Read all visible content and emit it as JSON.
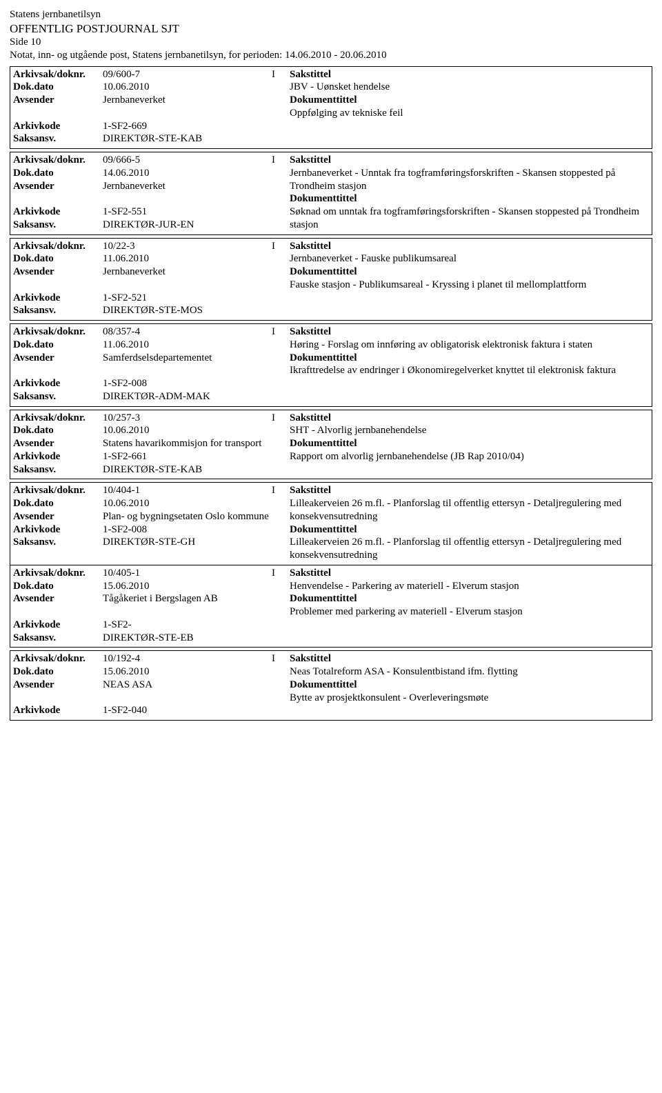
{
  "header": {
    "org": "Statens jernbanetilsyn",
    "title": "OFFENTLIG POSTJOURNAL SJT",
    "side": "Side 10",
    "notat": "Notat, inn- og utgående post, Statens jernbanetilsyn, for perioden: 14.06.2010 - 20.06.2010"
  },
  "labels": {
    "arkivsak": "Arkivsak/doknr.",
    "dokdato": "Dok.dato",
    "avsender": "Avsender",
    "arkivkode": "Arkivkode",
    "saksansv": "Saksansv.",
    "sakstittel": "Sakstittel",
    "dokumenttittel": "Dokumenttittel"
  },
  "groups": [
    {
      "entries": [
        {
          "arkivsak": "09/600-7",
          "io": "I",
          "dokdato": "10.06.2010",
          "avsender": "Jernbaneverket",
          "arkivkode": "1-SF2-669",
          "saksansv": "DIREKTØR-STE-KAB",
          "sakstittel": "JBV - Uønsket hendelse",
          "dokumenttittel": "Oppfølging av tekniske feil"
        }
      ]
    },
    {
      "entries": [
        {
          "arkivsak": "09/666-5",
          "io": "I",
          "dokdato": "14.06.2010",
          "avsender": "Jernbaneverket",
          "arkivkode": "1-SF2-551",
          "saksansv": "DIREKTØR-JUR-EN",
          "sakstittel": "Jernbaneverket - Unntak fra togframføringsforskriften - Skansen stoppested på Trondheim stasjon",
          "dokumenttittel": "Søknad om unntak fra togframføringsforskriften - Skansen stoppested på Trondheim stasjon"
        }
      ]
    },
    {
      "entries": [
        {
          "arkivsak": "10/22-3",
          "io": "I",
          "dokdato": "11.06.2010",
          "avsender": "Jernbaneverket",
          "arkivkode": "1-SF2-521",
          "saksansv": "DIREKTØR-STE-MOS",
          "sakstittel": "Jernbaneverket - Fauske publikumsareal",
          "dokumenttittel": "Fauske stasjon - Publikumsareal - Kryssing i planet til mellomplattform"
        }
      ]
    },
    {
      "entries": [
        {
          "arkivsak": "08/357-4",
          "io": "I",
          "dokdato": "11.06.2010",
          "avsender": "Samferdselsdepartementet",
          "arkivkode": "1-SF2-008",
          "saksansv": "DIREKTØR-ADM-MAK",
          "sakstittel": "Høring - Forslag om innføring av obligatorisk elektronisk faktura i staten",
          "dokumenttittel": "Ikrafttredelse av endringer i Økonomiregelverket knyttet til elektronisk faktura"
        }
      ]
    },
    {
      "entries": [
        {
          "arkivsak": "10/257-3",
          "io": "I",
          "dokdato": "10.06.2010",
          "avsender": "Statens havarikommisjon for transport",
          "arkivkode": "1-SF2-661",
          "saksansv": "DIREKTØR-STE-KAB",
          "sakstittel": "SHT - Alvorlig jernbanehendelse",
          "dokumenttittel": "Rapport om alvorlig jernbanehendelse (JB Rap 2010/04)"
        }
      ]
    },
    {
      "entries": [
        {
          "arkivsak": "10/404-1",
          "io": "I",
          "dokdato": "10.06.2010",
          "avsender": "Plan- og bygningsetaten Oslo kommune",
          "arkivkode": "1-SF2-008",
          "saksansv": "DIREKTØR-STE-GH",
          "sakstittel": "Lilleakerveien 26 m.fl. - Planforslag til offentlig ettersyn - Detaljregulering med konsekvensutredning",
          "dokumenttittel": "Lilleakerveien 26 m.fl. - Planforslag til offentlig ettersyn - Detaljregulering med konsekvensutredning"
        },
        {
          "arkivsak": "10/405-1",
          "io": "I",
          "dokdato": "15.06.2010",
          "avsender": "Tågåkeriet i Bergslagen AB",
          "arkivkode": "1-SF2-",
          "saksansv": "DIREKTØR-STE-EB",
          "sakstittel": "Henvendelse - Parkering av materiell - Elverum stasjon",
          "dokumenttittel": "Problemer med parkering av materiell - Elverum stasjon"
        }
      ]
    },
    {
      "entries": [
        {
          "arkivsak": "10/192-4",
          "io": "I",
          "dokdato": "15.06.2010",
          "avsender": "NEAS ASA",
          "arkivkode": "1-SF2-040",
          "saksansv": "",
          "sakstittel": "Neas Totalreform ASA - Konsulentbistand ifm. flytting",
          "dokumenttittel": "Bytte av prosjektkonsulent - Overleveringsmøte"
        }
      ]
    }
  ]
}
